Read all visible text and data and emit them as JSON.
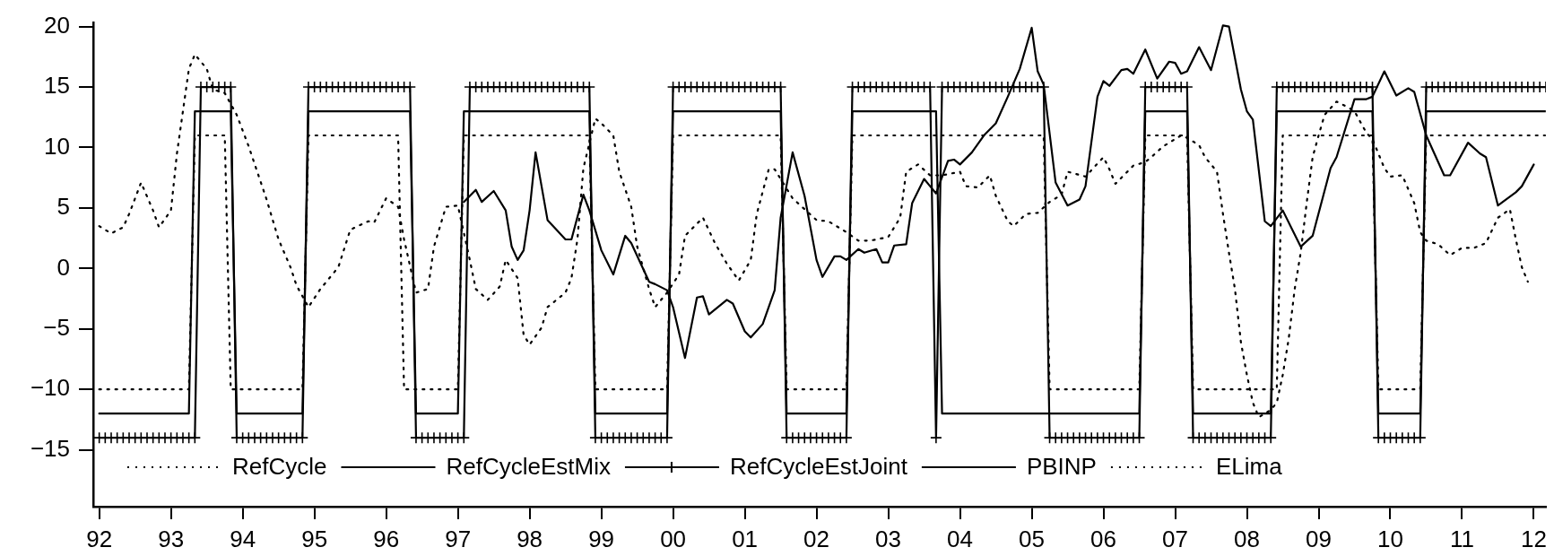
{
  "chart_data": {
    "type": "line",
    "legend": "bottom",
    "grid": false,
    "xlim": [
      "1991-12",
      "2012-03"
    ],
    "xticks": [
      {
        "value": "1992-01",
        "label": "92"
      },
      {
        "value": "1993-01",
        "label": "93"
      },
      {
        "value": "1994-01",
        "label": "94"
      },
      {
        "value": "1995-01",
        "label": "95"
      },
      {
        "value": "1996-01",
        "label": "96"
      },
      {
        "value": "1997-01",
        "label": "97"
      },
      {
        "value": "1998-01",
        "label": "98"
      },
      {
        "value": "1999-01",
        "label": "99"
      },
      {
        "value": "2000-01",
        "label": "00"
      },
      {
        "value": "2001-01",
        "label": "01"
      },
      {
        "value": "2002-01",
        "label": "02"
      },
      {
        "value": "2003-01",
        "label": "03"
      },
      {
        "value": "2004-01",
        "label": "04"
      },
      {
        "value": "2005-01",
        "label": "05"
      },
      {
        "value": "2006-01",
        "label": "06"
      },
      {
        "value": "2007-01",
        "label": "07"
      },
      {
        "value": "2008-01",
        "label": "08"
      },
      {
        "value": "2009-01",
        "label": "09"
      },
      {
        "value": "2010-01",
        "label": "10"
      },
      {
        "value": "2011-01",
        "label": "11"
      },
      {
        "value": "2012-01",
        "label": "12"
      }
    ],
    "ylim": [
      -19.7,
      20.3
    ],
    "yticks": [
      -15,
      -10,
      -5,
      0,
      5,
      10,
      15,
      20
    ],
    "x": [
      "1992-01",
      "1992-02",
      "1992-03",
      "1992-04",
      "1992-05",
      "1992-06",
      "1992-07",
      "1992-08",
      "1992-09",
      "1992-10",
      "1992-11",
      "1992-12",
      "1993-01",
      "1993-02",
      "1993-03",
      "1993-04",
      "1993-05",
      "1993-06",
      "1993-07",
      "1993-08",
      "1993-09",
      "1993-10",
      "1993-11",
      "1993-12",
      "1994-01",
      "1994-02",
      "1994-03",
      "1994-04",
      "1994-05",
      "1994-06",
      "1994-07",
      "1994-08",
      "1994-09",
      "1994-10",
      "1994-11",
      "1994-12",
      "1995-01",
      "1995-02",
      "1995-03",
      "1995-04",
      "1995-05",
      "1995-06",
      "1995-07",
      "1995-08",
      "1995-09",
      "1995-10",
      "1995-11",
      "1995-12",
      "1996-01",
      "1996-02",
      "1996-03",
      "1996-04",
      "1996-05",
      "1996-06",
      "1996-07",
      "1996-08",
      "1996-09",
      "1996-10",
      "1996-11",
      "1996-12",
      "1997-01",
      "1997-02",
      "1997-03",
      "1997-04",
      "1997-05",
      "1997-06",
      "1997-07",
      "1997-08",
      "1997-09",
      "1997-10",
      "1997-11",
      "1997-12",
      "1998-01",
      "1998-02",
      "1998-03",
      "1998-04",
      "1998-05",
      "1998-06",
      "1998-07",
      "1998-08",
      "1998-09",
      "1998-10",
      "1998-11",
      "1998-12",
      "1999-01",
      "1999-02",
      "1999-03",
      "1999-04",
      "1999-05",
      "1999-06",
      "1999-07",
      "1999-08",
      "1999-09",
      "1999-10",
      "1999-11",
      "1999-12",
      "2000-01",
      "2000-02",
      "2000-03",
      "2000-04",
      "2000-05",
      "2000-06",
      "2000-07",
      "2000-08",
      "2000-09",
      "2000-10",
      "2000-11",
      "2000-12",
      "2001-01",
      "2001-02",
      "2001-03",
      "2001-04",
      "2001-05",
      "2001-06",
      "2001-07",
      "2001-08",
      "2001-09",
      "2001-10",
      "2001-11",
      "2001-12",
      "2002-01",
      "2002-02",
      "2002-03",
      "2002-04",
      "2002-05",
      "2002-06",
      "2002-07",
      "2002-08",
      "2002-09",
      "2002-10",
      "2002-11",
      "2002-12",
      "2003-01",
      "2003-02",
      "2003-03",
      "2003-04",
      "2003-05",
      "2003-06",
      "2003-07",
      "2003-08",
      "2003-09",
      "2003-10",
      "2003-11",
      "2003-12",
      "2004-01",
      "2004-02",
      "2004-03",
      "2004-04",
      "2004-05",
      "2004-06",
      "2004-07",
      "2004-08",
      "2004-09",
      "2004-10",
      "2004-11",
      "2004-12",
      "2005-01",
      "2005-02",
      "2005-03",
      "2005-04",
      "2005-05",
      "2005-06",
      "2005-07",
      "2005-08",
      "2005-09",
      "2005-10",
      "2005-11",
      "2005-12",
      "2006-01",
      "2006-02",
      "2006-03",
      "2006-04",
      "2006-05",
      "2006-06",
      "2006-07",
      "2006-08",
      "2006-09",
      "2006-10",
      "2006-11",
      "2006-12",
      "2007-01",
      "2007-02",
      "2007-03",
      "2007-04",
      "2007-05",
      "2007-06",
      "2007-07",
      "2007-08",
      "2007-09",
      "2007-10",
      "2007-11",
      "2007-12",
      "2008-01",
      "2008-02",
      "2008-03",
      "2008-04",
      "2008-05",
      "2008-06",
      "2008-07",
      "2008-08",
      "2008-09",
      "2008-10",
      "2008-11",
      "2008-12",
      "2009-01",
      "2009-02",
      "2009-03",
      "2009-04",
      "2009-05",
      "2009-06",
      "2009-07",
      "2009-08",
      "2009-09",
      "2009-10",
      "2009-11",
      "2009-12",
      "2010-01",
      "2010-02",
      "2010-03",
      "2010-04",
      "2010-05",
      "2010-06",
      "2010-07",
      "2010-08",
      "2010-09",
      "2010-10",
      "2010-11",
      "2010-12",
      "2011-01",
      "2011-02",
      "2011-03",
      "2011-04",
      "2011-05",
      "2011-06",
      "2011-07",
      "2011-08",
      "2011-09",
      "2011-10",
      "2011-11",
      "2011-12",
      "2012-01",
      "2012-02",
      "2012-03"
    ],
    "series": [
      {
        "name": "RefCycle",
        "color": "#000000",
        "line_style": "dotted",
        "values": [
          -10,
          -10,
          -10,
          -10,
          -10,
          -10,
          -10,
          -10,
          -10,
          -10,
          -10,
          -10,
          -10,
          -10,
          -10,
          -10,
          11,
          11,
          11,
          11,
          11,
          11,
          -10,
          -10,
          -10,
          -10,
          -10,
          -10,
          -10,
          -10,
          -10,
          -10,
          -10,
          -10,
          -10,
          11,
          11,
          11,
          11,
          11,
          11,
          11,
          11,
          11,
          11,
          11,
          11,
          11,
          11,
          11,
          11,
          -10,
          -10,
          -10,
          -10,
          -10,
          -10,
          -10,
          -10,
          -10,
          -10,
          11,
          11,
          11,
          11,
          11,
          11,
          11,
          11,
          11,
          11,
          11,
          11,
          11,
          11,
          11,
          11,
          11,
          11,
          11,
          11,
          11,
          11,
          -10,
          -10,
          -10,
          -10,
          -10,
          -10,
          -10,
          -10,
          -10,
          -10,
          -10,
          -10,
          -10,
          11,
          11,
          11,
          11,
          11,
          11,
          11,
          11,
          11,
          11,
          11,
          11,
          11,
          11,
          11,
          11,
          11,
          11,
          11,
          -10,
          -10,
          -10,
          -10,
          -10,
          -10,
          -10,
          -10,
          -10,
          -10,
          -10,
          11,
          11,
          11,
          11,
          11,
          11,
          11,
          11,
          11,
          11,
          11,
          11,
          11,
          11,
          11,
          11,
          11,
          11,
          11,
          11,
          11,
          11,
          11,
          11,
          11,
          11,
          11,
          11,
          11,
          11,
          11,
          11,
          11,
          -10,
          -10,
          -10,
          -10,
          -10,
          -10,
          -10,
          -10,
          -10,
          -10,
          -10,
          -10,
          -10,
          -10,
          -10,
          -10,
          11,
          11,
          11,
          11,
          11,
          11,
          11,
          11,
          -10,
          -10,
          -10,
          -10,
          -10,
          -10,
          -10,
          -10,
          -10,
          -10,
          -10,
          -10,
          -10,
          -10,
          -10,
          11,
          11,
          11,
          11,
          11,
          11,
          11,
          11,
          11,
          11,
          11,
          11,
          11,
          11,
          11,
          11,
          -10,
          -10,
          -10,
          -10,
          -10,
          -10,
          -10,
          -10,
          11,
          11,
          11,
          11,
          11,
          11,
          11,
          11,
          11,
          11,
          11,
          11,
          11,
          11,
          11,
          11,
          11,
          11,
          11,
          11,
          11
        ]
      },
      {
        "name": "RefCycleEstMix",
        "color": "#000000",
        "line_style": "solid",
        "values": [
          -12,
          -12,
          -12,
          -12,
          -12,
          -12,
          -12,
          -12,
          -12,
          -12,
          -12,
          -12,
          -12,
          -12,
          -12,
          -12,
          13,
          13,
          13,
          13,
          13,
          13,
          13,
          -12,
          -12,
          -12,
          -12,
          -12,
          -12,
          -12,
          -12,
          -12,
          -12,
          -12,
          -12,
          13,
          13,
          13,
          13,
          13,
          13,
          13,
          13,
          13,
          13,
          13,
          13,
          13,
          13,
          13,
          13,
          13,
          13,
          -12,
          -12,
          -12,
          -12,
          -12,
          -12,
          -12,
          -12,
          13,
          13,
          13,
          13,
          13,
          13,
          13,
          13,
          13,
          13,
          13,
          13,
          13,
          13,
          13,
          13,
          13,
          13,
          13,
          13,
          13,
          13,
          -12,
          -12,
          -12,
          -12,
          -12,
          -12,
          -12,
          -12,
          -12,
          -12,
          -12,
          -12,
          -12,
          13,
          13,
          13,
          13,
          13,
          13,
          13,
          13,
          13,
          13,
          13,
          13,
          13,
          13,
          13,
          13,
          13,
          13,
          13,
          -12,
          -12,
          -12,
          -12,
          -12,
          -12,
          -12,
          -12,
          -12,
          -12,
          -12,
          13,
          13,
          13,
          13,
          13,
          13,
          13,
          13,
          13,
          13,
          13,
          13,
          13,
          13,
          13,
          -12,
          -12,
          -12,
          -12,
          -12,
          -12,
          -12,
          -12,
          -12,
          -12,
          -12,
          -12,
          -12,
          -12,
          -12,
          -12,
          -12,
          -12,
          -12,
          -12,
          -12,
          -12,
          -12,
          -12,
          -12,
          -12,
          -12,
          -12,
          -12,
          -12,
          -12,
          -12,
          -12,
          -12,
          13,
          13,
          13,
          13,
          13,
          13,
          13,
          13,
          -12,
          -12,
          -12,
          -12,
          -12,
          -12,
          -12,
          -12,
          -12,
          -12,
          -12,
          -12,
          -12,
          -12,
          13,
          13,
          13,
          13,
          13,
          13,
          13,
          13,
          13,
          13,
          13,
          13,
          13,
          13,
          13,
          13,
          13,
          -12,
          -12,
          -12,
          -12,
          -12,
          -12,
          -12,
          -12,
          13,
          13,
          13,
          13,
          13,
          13,
          13,
          13,
          13,
          13,
          13,
          13,
          13,
          13,
          13,
          13,
          13,
          13,
          13,
          13,
          13
        ]
      },
      {
        "name": "RefCycleEstJoint",
        "color": "#000000",
        "line_style": "solid",
        "marker": "cross",
        "values": [
          -14,
          -14,
          -14,
          -14,
          -14,
          -14,
          -14,
          -14,
          -14,
          -14,
          -14,
          -14,
          -14,
          -14,
          -14,
          -14,
          -14,
          15,
          15,
          15,
          15,
          15,
          15,
          -14,
          -14,
          -14,
          -14,
          -14,
          -14,
          -14,
          -14,
          -14,
          -14,
          -14,
          -14,
          15,
          15,
          15,
          15,
          15,
          15,
          15,
          15,
          15,
          15,
          15,
          15,
          15,
          15,
          15,
          15,
          15,
          15,
          -14,
          -14,
          -14,
          -14,
          -14,
          -14,
          -14,
          -14,
          -14,
          15,
          15,
          15,
          15,
          15,
          15,
          15,
          15,
          15,
          15,
          15,
          15,
          15,
          15,
          15,
          15,
          15,
          15,
          15,
          15,
          15,
          -14,
          -14,
          -14,
          -14,
          -14,
          -14,
          -14,
          -14,
          -14,
          -14,
          -14,
          -14,
          -14,
          15,
          15,
          15,
          15,
          15,
          15,
          15,
          15,
          15,
          15,
          15,
          15,
          15,
          15,
          15,
          15,
          15,
          15,
          15,
          -14,
          -14,
          -14,
          -14,
          -14,
          -14,
          -14,
          -14,
          -14,
          -14,
          -14,
          15,
          15,
          15,
          15,
          15,
          15,
          15,
          15,
          15,
          15,
          15,
          15,
          15,
          15,
          -14,
          15,
          15,
          15,
          15,
          15,
          15,
          15,
          15,
          15,
          15,
          15,
          15,
          15,
          15,
          15,
          15,
          15,
          15,
          -14,
          -14,
          -14,
          -14,
          -14,
          -14,
          -14,
          -14,
          -14,
          -14,
          -14,
          -14,
          -14,
          -14,
          -14,
          -14,
          15,
          15,
          15,
          15,
          15,
          15,
          15,
          15,
          -14,
          -14,
          -14,
          -14,
          -14,
          -14,
          -14,
          -14,
          -14,
          -14,
          -14,
          -14,
          -14,
          -14,
          15,
          15,
          15,
          15,
          15,
          15,
          15,
          15,
          15,
          15,
          15,
          15,
          15,
          15,
          15,
          15,
          15,
          -14,
          -14,
          -14,
          -14,
          -14,
          -14,
          -14,
          -14,
          15,
          15,
          15,
          15,
          15,
          15,
          15,
          15,
          15,
          15,
          15,
          15,
          15,
          15,
          15,
          15,
          15,
          15,
          15,
          15,
          15
        ]
      },
      {
        "name": "PBINP",
        "color": "#000000",
        "line_style": "solid",
        "x": [
          "1997-02",
          "1997-04",
          "1997-05",
          "1997-07",
          "1997-09",
          "1997-10",
          "1997-11",
          "1997-12",
          "1998-01",
          "1998-02",
          "1998-04",
          "1998-07",
          "1998-08",
          "1998-10",
          "1998-11",
          "1999-01",
          "1999-03",
          "1999-05",
          "1999-06",
          "1999-09",
          "1999-10",
          "1999-12",
          "2000-01",
          "2000-03",
          "2000-05",
          "2000-06",
          "2000-07",
          "2000-10",
          "2000-11",
          "2001-01",
          "2001-02",
          "2001-04",
          "2001-06",
          "2001-07",
          "2001-09",
          "2001-11",
          "2002-01",
          "2002-02",
          "2002-04",
          "2002-05",
          "2002-06",
          "2002-08",
          "2002-09",
          "2002-11",
          "2002-12",
          "2003-01",
          "2003-02",
          "2003-04",
          "2003-05",
          "2003-07",
          "2003-08",
          "2003-09",
          "2003-11",
          "2003-12",
          "2004-01",
          "2004-03",
          "2004-05",
          "2004-07",
          "2004-09",
          "2004-11",
          "2005-01",
          "2005-02",
          "2005-03",
          "2005-05",
          "2005-07",
          "2005-09",
          "2005-10",
          "2005-12",
          "2006-01",
          "2006-02",
          "2006-04",
          "2006-05",
          "2006-06",
          "2006-08",
          "2006-10",
          "2006-12",
          "2007-01",
          "2007-02",
          "2007-03",
          "2007-05",
          "2007-07",
          "2007-09",
          "2007-10",
          "2007-12",
          "2008-01",
          "2008-02",
          "2008-04",
          "2008-05",
          "2008-07",
          "2008-10",
          "2008-12",
          "2009-03",
          "2009-04",
          "2009-07",
          "2009-09",
          "2009-10",
          "2009-12",
          "2010-02",
          "2010-04",
          "2010-05",
          "2010-07",
          "2010-10",
          "2010-11",
          "2011-02",
          "2011-04",
          "2011-05",
          "2011-07",
          "2011-10",
          "2011-11",
          "2012-01"
        ],
        "values": [
          5.5,
          6.5,
          5.5,
          6.4,
          4.8,
          1.8,
          0.7,
          1.5,
          4.8,
          9.6,
          4.0,
          2.4,
          2.4,
          6.1,
          4.8,
          1.5,
          -0.5,
          2.7,
          2.1,
          -1.1,
          -1.3,
          -1.8,
          -3.2,
          -7.4,
          -2.4,
          -2.3,
          -3.8,
          -2.6,
          -2.9,
          -5.2,
          -5.7,
          -4.6,
          -1.8,
          4.2,
          9.6,
          6.0,
          0.7,
          -0.7,
          1.0,
          1.0,
          0.7,
          1.6,
          1.3,
          1.6,
          0.5,
          0.5,
          1.9,
          2.0,
          5.4,
          7.4,
          6.8,
          6.2,
          8.9,
          9.0,
          8.6,
          9.6,
          11.0,
          12.0,
          14.2,
          16.5,
          19.9,
          16.3,
          15.2,
          7.1,
          5.2,
          5.7,
          6.8,
          14.2,
          15.5,
          15.1,
          16.4,
          16.5,
          16.1,
          18.1,
          15.7,
          17.1,
          17.0,
          16.1,
          16.3,
          18.3,
          16.4,
          20.1,
          20.0,
          14.8,
          13.0,
          12.3,
          3.9,
          3.5,
          4.8,
          1.8,
          2.7,
          8.3,
          9.2,
          14.0,
          14.0,
          14.2,
          16.3,
          14.3,
          14.9,
          14.6,
          11.0,
          7.7,
          7.7,
          10.4,
          9.5,
          9.2,
          5.2,
          6.3,
          6.8,
          8.6
        ]
      },
      {
        "name": "ELima",
        "color": "#000000",
        "line_style": "dotted",
        "x": [
          "1992-01",
          "1992-03",
          "1992-05",
          "1992-06",
          "1992-08",
          "1992-10",
          "1992-11",
          "1993-01",
          "1993-02",
          "1993-04",
          "1993-05",
          "1993-07",
          "1993-08",
          "1993-10",
          "1993-12",
          "1994-02",
          "1994-05",
          "1994-07",
          "1994-09",
          "1994-10",
          "1994-12",
          "1995-02",
          "1995-05",
          "1995-07",
          "1995-10",
          "1995-11",
          "1996-01",
          "1996-03",
          "1996-04",
          "1996-06",
          "1996-08",
          "1996-09",
          "1996-11",
          "1997-01",
          "1997-03",
          "1997-04",
          "1997-06",
          "1997-08",
          "1997-09",
          "1997-11",
          "1997-12",
          "1998-01",
          "1998-03",
          "1998-04",
          "1998-07",
          "1998-08",
          "1998-09",
          "1998-10",
          "1998-12",
          "1999-01",
          "1999-03",
          "1999-04",
          "1999-06",
          "1999-07",
          "1999-09",
          "1999-10",
          "1999-12",
          "2000-02",
          "2000-03",
          "2000-06",
          "2000-08",
          "2000-10",
          "2000-12",
          "2001-02",
          "2001-03",
          "2001-05",
          "2001-06",
          "2001-09",
          "2001-11",
          "2002-01",
          "2002-03",
          "2002-06",
          "2002-08",
          "2002-10",
          "2003-01",
          "2003-03",
          "2003-04",
          "2003-06",
          "2003-08",
          "2003-10",
          "2004-01",
          "2004-02",
          "2004-04",
          "2004-06",
          "2004-07",
          "2004-09",
          "2004-10",
          "2004-12",
          "2005-02",
          "2005-04",
          "2005-06",
          "2005-07",
          "2005-10",
          "2006-01",
          "2006-02",
          "2006-03",
          "2006-06",
          "2006-08",
          "2006-09",
          "2006-11",
          "2007-01",
          "2007-02",
          "2007-03",
          "2007-05",
          "2007-06",
          "2007-08",
          "2007-09",
          "2007-10",
          "2007-11",
          "2007-12",
          "2008-01",
          "2008-02",
          "2008-03",
          "2008-05",
          "2008-06",
          "2008-07",
          "2008-08",
          "2008-09",
          "2008-10",
          "2008-11",
          "2008-12",
          "2009-01",
          "2009-02",
          "2009-04",
          "2009-06",
          "2009-07",
          "2009-09",
          "2009-10",
          "2009-12",
          "2010-01",
          "2010-03",
          "2010-05",
          "2010-06",
          "2010-07",
          "2010-09",
          "2010-11",
          "2011-01",
          "2011-03",
          "2011-05",
          "2011-07",
          "2011-09",
          "2011-10",
          "2011-11",
          "2011-12"
        ],
        "values": [
          3.5,
          2.9,
          3.4,
          4.5,
          7.1,
          4.8,
          3.4,
          4.8,
          9.5,
          16.5,
          17.7,
          16.5,
          14.8,
          14.5,
          12.7,
          10.1,
          5.7,
          2.4,
          0.1,
          -1.4,
          -3.2,
          -1.7,
          0.1,
          3.2,
          3.9,
          3.8,
          5.8,
          5.1,
          2.4,
          -2.0,
          -1.7,
          1.8,
          5.1,
          5.2,
          0.7,
          -1.7,
          -2.6,
          -1.5,
          0.7,
          -0.8,
          -5.5,
          -6.3,
          -4.9,
          -3.2,
          -2.0,
          -0.8,
          2.4,
          8.3,
          12.4,
          12.0,
          11.0,
          8.0,
          5.1,
          1.8,
          -1.7,
          -3.2,
          -2.0,
          -0.5,
          2.7,
          4.2,
          2.1,
          0.4,
          -1.0,
          0.7,
          4.5,
          8.2,
          8.2,
          5.8,
          4.9,
          4.0,
          3.9,
          3.0,
          2.3,
          2.3,
          2.6,
          4.2,
          8.0,
          8.6,
          7.7,
          7.7,
          8.0,
          6.8,
          6.7,
          7.7,
          6.0,
          3.9,
          3.5,
          4.5,
          4.6,
          5.5,
          6.1,
          8.0,
          7.6,
          9.2,
          8.2,
          7.0,
          8.5,
          8.8,
          9.2,
          10.1,
          10.7,
          11.0,
          10.8,
          10.2,
          9.2,
          8.0,
          4.5,
          1.3,
          -1.7,
          -6.1,
          -8.8,
          -11.1,
          -12.3,
          -11.7,
          -11.1,
          -8.8,
          -5.8,
          -1.7,
          1.3,
          5.4,
          9.2,
          11.0,
          12.7,
          13.8,
          13.3,
          13.0,
          11.2,
          10.7,
          8.3,
          7.6,
          7.7,
          5.4,
          3.0,
          2.3,
          2.0,
          1.1,
          1.7,
          1.7,
          2.1,
          4.2,
          4.9,
          2.4,
          0.1,
          -1.1
        ]
      }
    ]
  }
}
